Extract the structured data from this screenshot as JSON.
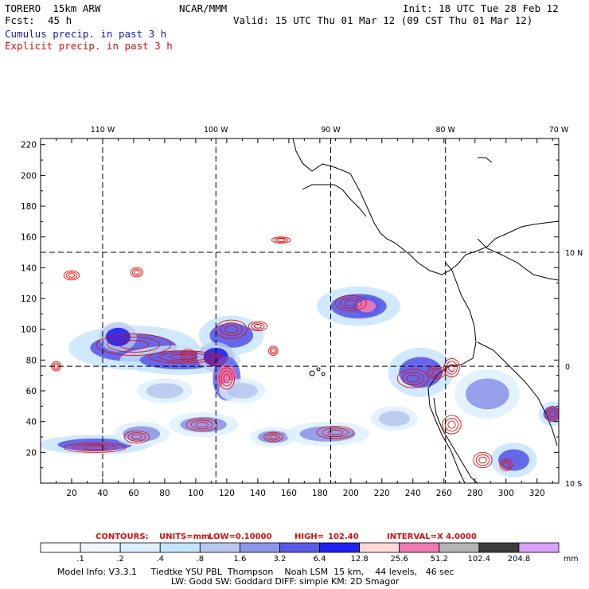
{
  "header": {
    "model": "TORERO  15km ARW",
    "org": "NCAR/MMM",
    "init": "Init: 18 UTC Tue 28 Feb 12",
    "fcst_label": "Fcst:",
    "fcst_value": "45 h",
    "valid": "Valid: 15 UTC Thu 01 Mar 12 (09 CST Thu 01 Mar 12)",
    "line_cumulus": "Cumulus precip. in past 3 h",
    "line_explicit": "Explicit precip. in past 3 h"
  },
  "colors": {
    "cumulus_text": "#1a1ab0",
    "explicit_text": "#d01010",
    "contour": "#e01010",
    "coast": "#000000"
  },
  "chart_data": {
    "type": "heatmap",
    "title": "",
    "x_ticks": [
      20,
      40,
      60,
      80,
      100,
      120,
      140,
      160,
      180,
      200,
      220,
      240,
      260,
      280,
      300,
      320
    ],
    "y_ticks": [
      20,
      40,
      60,
      80,
      100,
      120,
      140,
      160,
      180,
      200,
      220
    ],
    "xlim": [
      0,
      334
    ],
    "ylim": [
      0,
      224
    ],
    "lon_labels": [
      "110 W",
      "100 W",
      "90 W",
      "80 W",
      "70 W"
    ],
    "lon_grid_x": [
      40,
      113,
      187,
      261
    ],
    "lat_labels": [
      "10 N",
      "0",
      "10 S"
    ],
    "lat_grid_y": [
      150,
      76
    ],
    "grid": "dashed lat/lon lines",
    "contour_note": {
      "label_contours": "CONTOURS:",
      "label_units": "UNITS=mm",
      "label_low": "LOW=",
      "low": "0.10000",
      "label_high": "HIGH=",
      "high": "102.40",
      "label_interval": "INTERVAL=X",
      "interval": "4.0000"
    },
    "colorbar": {
      "units": "mm",
      "thresholds": [
        ".1",
        ".2",
        ".4",
        ".8",
        "1.6",
        "3.2",
        "6.4",
        "12.8",
        "25.6",
        "51.2",
        "102.4",
        "204.8"
      ],
      "colors": [
        "#ffffff",
        "#f0f8ff",
        "#dcefff",
        "#c4e4ff",
        "#b8c8f0",
        "#8c96ea",
        "#5a5ae8",
        "#2020f0",
        "#ffd8d8",
        "#f07ab0",
        "#b4b4b4",
        "#3c3c3c",
        "#d8a0f8"
      ]
    },
    "precip_areas": [
      {
        "x": 60,
        "y": 88,
        "rx": 28,
        "ry": 9,
        "level": 6
      },
      {
        "x": 90,
        "y": 80,
        "rx": 26,
        "ry": 6,
        "level": 6
      },
      {
        "x": 50,
        "y": 95,
        "rx": 8,
        "ry": 6,
        "level": 7
      },
      {
        "x": 123,
        "y": 96,
        "rx": 14,
        "ry": 8,
        "level": 6
      },
      {
        "x": 113,
        "y": 82,
        "rx": 8,
        "ry": 6,
        "level": 7
      },
      {
        "x": 120,
        "y": 68,
        "rx": 6,
        "ry": 9,
        "level": 9
      },
      {
        "x": 205,
        "y": 115,
        "rx": 18,
        "ry": 8,
        "level": 6
      },
      {
        "x": 210,
        "y": 115,
        "rx": 6,
        "ry": 4,
        "level": 9
      },
      {
        "x": 245,
        "y": 72,
        "rx": 14,
        "ry": 10,
        "level": 6
      },
      {
        "x": 288,
        "y": 58,
        "rx": 14,
        "ry": 10,
        "level": 5
      },
      {
        "x": 305,
        "y": 15,
        "rx": 10,
        "ry": 7,
        "level": 6
      },
      {
        "x": 35,
        "y": 25,
        "rx": 24,
        "ry": 4,
        "level": 6
      },
      {
        "x": 65,
        "y": 32,
        "rx": 12,
        "ry": 5,
        "level": 5
      },
      {
        "x": 105,
        "y": 38,
        "rx": 15,
        "ry": 5,
        "level": 5
      },
      {
        "x": 150,
        "y": 30,
        "rx": 10,
        "ry": 4,
        "level": 5
      },
      {
        "x": 185,
        "y": 32,
        "rx": 18,
        "ry": 5,
        "level": 5
      },
      {
        "x": 130,
        "y": 60,
        "rx": 10,
        "ry": 5,
        "level": 4
      },
      {
        "x": 80,
        "y": 60,
        "rx": 12,
        "ry": 5,
        "level": 4
      },
      {
        "x": 330,
        "y": 45,
        "rx": 6,
        "ry": 5,
        "level": 6
      },
      {
        "x": 228,
        "y": 42,
        "rx": 10,
        "ry": 5,
        "level": 4
      }
    ],
    "contour_cells": [
      {
        "x": 60,
        "y": 90,
        "rx": 24,
        "ry": 7
      },
      {
        "x": 92,
        "y": 82,
        "rx": 22,
        "ry": 4
      },
      {
        "x": 113,
        "y": 80,
        "rx": 6,
        "ry": 4
      },
      {
        "x": 123,
        "y": 100,
        "rx": 10,
        "ry": 6
      },
      {
        "x": 140,
        "y": 102,
        "rx": 6,
        "ry": 3
      },
      {
        "x": 120,
        "y": 68,
        "rx": 5,
        "ry": 7
      },
      {
        "x": 200,
        "y": 117,
        "rx": 10,
        "ry": 5
      },
      {
        "x": 240,
        "y": 68,
        "rx": 10,
        "ry": 6
      },
      {
        "x": 255,
        "y": 72,
        "rx": 6,
        "ry": 4
      },
      {
        "x": 265,
        "y": 75,
        "rx": 5,
        "ry": 6
      },
      {
        "x": 265,
        "y": 38,
        "rx": 6,
        "ry": 6
      },
      {
        "x": 285,
        "y": 15,
        "rx": 6,
        "ry": 5
      },
      {
        "x": 300,
        "y": 12,
        "rx": 4,
        "ry": 4
      },
      {
        "x": 35,
        "y": 23,
        "rx": 20,
        "ry": 3
      },
      {
        "x": 62,
        "y": 30,
        "rx": 8,
        "ry": 4
      },
      {
        "x": 104,
        "y": 38,
        "rx": 10,
        "ry": 4
      },
      {
        "x": 150,
        "y": 30,
        "rx": 6,
        "ry": 3
      },
      {
        "x": 190,
        "y": 33,
        "rx": 12,
        "ry": 4
      },
      {
        "x": 20,
        "y": 135,
        "rx": 5,
        "ry": 3
      },
      {
        "x": 155,
        "y": 158,
        "rx": 6,
        "ry": 2
      },
      {
        "x": 95,
        "y": 83,
        "rx": 5,
        "ry": 4
      },
      {
        "x": 330,
        "y": 45,
        "rx": 4,
        "ry": 5
      },
      {
        "x": 62,
        "y": 137,
        "rx": 4,
        "ry": 3
      },
      {
        "x": 150,
        "y": 86,
        "rx": 3,
        "ry": 3
      },
      {
        "x": 10,
        "y": 76,
        "rx": 3,
        "ry": 3
      }
    ]
  },
  "footer": {
    "line1": "Model Info: V3.3.1     Tiedtke YSU PBL  Thompson    Noah LSM  15 km,    44 levels,   46 sec",
    "line2": "LW: Godd SW: Goddard DIFF: simple KM: 2D Smagor"
  }
}
